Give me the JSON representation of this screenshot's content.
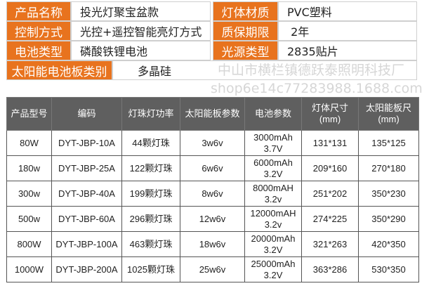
{
  "specs": [
    {
      "label": "产品名称",
      "value": "投光灯聚宝盆款"
    },
    {
      "label": "灯体材质",
      "value": "PVC塑料"
    },
    {
      "label": "控制方式",
      "value": "光控+遥控智能亮灯方式"
    },
    {
      "label": "质保期限",
      "value": " 2年"
    },
    {
      "label": "电池类型",
      "value": "磷酸铁锂电池"
    },
    {
      "label": "光源类型",
      "value": "2835贴片"
    },
    {
      "label": "太阳能电池板类别",
      "value": "多晶硅"
    }
  ],
  "table": {
    "headers": [
      "产品型号",
      "编码",
      "灯珠灯功率",
      "太阳能板参数",
      "电池参数",
      "灯体尺寸\n(mm)",
      "太阳能板尺\n(mm)"
    ],
    "rows": [
      [
        "80W",
        "DYT-JBP-10A",
        "44颗灯珠",
        "3w6v",
        "3000mAh\n3.7V",
        "131*131",
        "135*125"
      ],
      [
        "180w",
        "DYT-JBP-25A",
        "122颗灯珠",
        "6w6v",
        "6000mAh\n3.2V",
        "209*160",
        "270*180"
      ],
      [
        "300w",
        "DYT-JBP-40A",
        "199颗灯珠",
        "8w6v",
        "8000mAH\n3.2v",
        "251*202",
        "350*230"
      ],
      [
        "500w",
        "DYT-JBP-60A",
        "296颗灯珠",
        "12w6v",
        "12000mAH\n3.2v",
        "274*225",
        "350*290"
      ],
      [
        "800W",
        "DYT-JBP-100A",
        "463颗灯珠",
        "18w6v",
        "20000mAh\n3.2V",
        "321*263",
        "420*350"
      ],
      [
        "1000W",
        "DYT-JBP-200A",
        "1025颗灯珠",
        "25w6v",
        "25000mAh\n3.2V",
        "363*286",
        "530*350"
      ]
    ]
  },
  "watermark": {
    "line1": "中山市横栏镇德跃泰照明科技厂",
    "line2": "shop6e14c77283988.1688.com"
  },
  "colors": {
    "accent": "#e8731e",
    "header": "#5f5f5f"
  }
}
